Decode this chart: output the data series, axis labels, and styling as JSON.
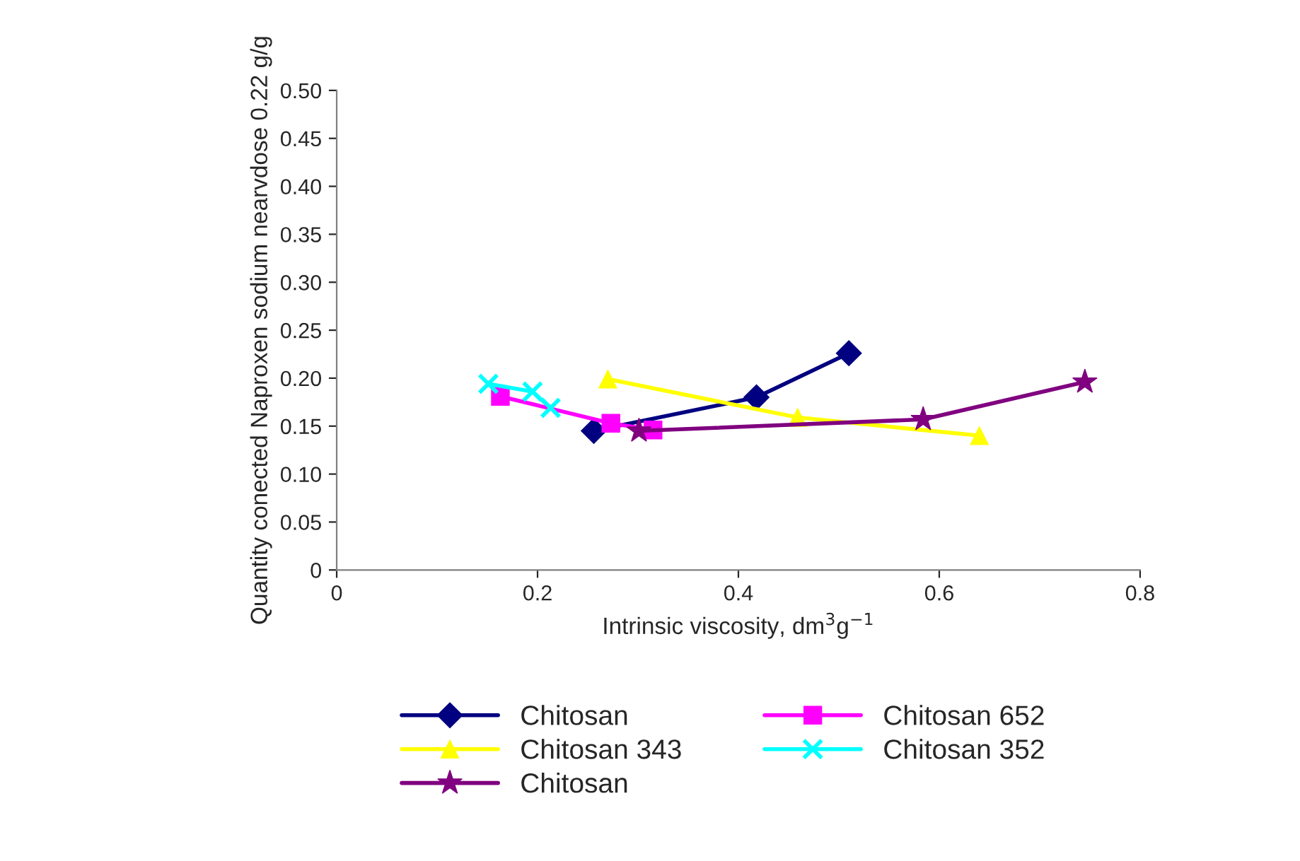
{
  "chart_data": {
    "type": "line",
    "xlabel": "Intrinsic viscosity, dm$^{3}$g$^{−1}$",
    "ylabel": "Quantity conected Naproxen sodium nearvdose 0.22 g/g",
    "xlim": [
      0,
      0.8
    ],
    "xticks": [
      0,
      0.2,
      0.4,
      0.6,
      0.8
    ],
    "ylim": [
      0,
      0.5
    ],
    "yticks": [
      {
        "value": 0,
        "label": "0"
      },
      {
        "value": 0.05,
        "label": "0.05"
      },
      {
        "value": 0.1,
        "label": "0.10"
      },
      {
        "value": 0.15,
        "label": "0.15"
      },
      {
        "value": 0.2,
        "label": "0.20"
      },
      {
        "value": 0.25,
        "label": "0.25"
      },
      {
        "value": 0.3,
        "label": "0.30"
      },
      {
        "value": 0.35,
        "label": "0.35"
      },
      {
        "value": 0.4,
        "label": "0.40"
      },
      {
        "value": 0.45,
        "label": "0.45"
      },
      {
        "value": 0.5,
        "label": "0.50"
      }
    ],
    "grid": false,
    "legend": "bottom",
    "series": [
      {
        "name": "Chitosan",
        "color": "#000080",
        "marker": "diamond",
        "x": [
          0.256,
          0.418,
          0.51
        ],
        "values": [
          0.145,
          0.18,
          0.226
        ]
      },
      {
        "name": "Chitosan 652",
        "color": "#ff00ff",
        "marker": "square",
        "x": [
          0.163,
          0.273,
          0.315
        ],
        "values": [
          0.181,
          0.153,
          0.146
        ]
      },
      {
        "name": "Chitosan 343",
        "color": "#ffff00",
        "marker": "triangle",
        "x": [
          0.27,
          0.459,
          0.64
        ],
        "values": [
          0.199,
          0.159,
          0.14
        ]
      },
      {
        "name": "Chitosan 352",
        "color": "#00ffff",
        "marker": "cross",
        "x": [
          0.151,
          0.195,
          0.213
        ],
        "values": [
          0.194,
          0.186,
          0.169
        ]
      },
      {
        "name": "Chitosan",
        "color": "#800080",
        "marker": "star",
        "x": [
          0.301,
          0.584,
          0.745
        ],
        "values": [
          0.145,
          0.157,
          0.196
        ]
      }
    ]
  }
}
